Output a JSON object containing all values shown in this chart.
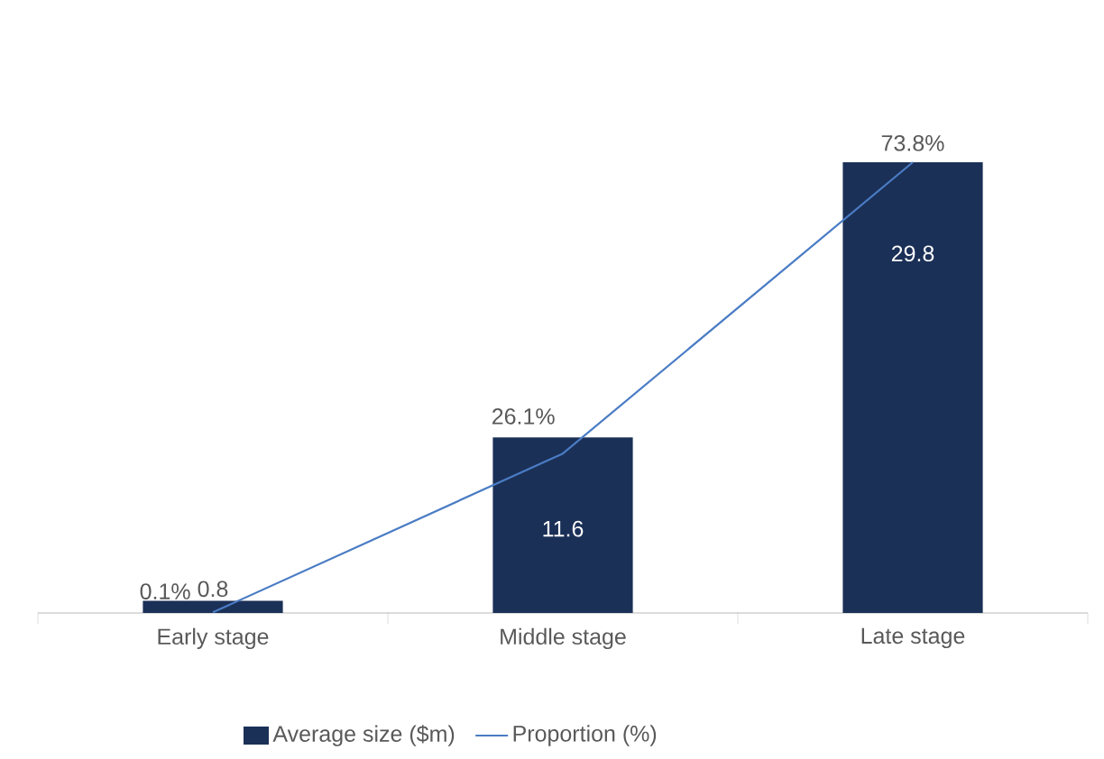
{
  "chart_data": {
    "type": "bar",
    "categories": [
      "Early stage",
      "Middle stage",
      "Late stage"
    ],
    "series": [
      {
        "name": "Average size ($m)",
        "color": "#1b3057",
        "values": [
          0.8,
          11.6,
          29.8
        ],
        "value_labels": [
          "0.8",
          "11.6",
          "29.8"
        ]
      },
      {
        "name": "Proportion (%)",
        "type": "line",
        "axis": "y2",
        "color": "#4a7cc4",
        "values": [
          0.1,
          26.1,
          73.8
        ],
        "value_labels": [
          "0.1%",
          "26.1%",
          "73.8%"
        ]
      }
    ],
    "legend": "bottom",
    "marker": "none",
    "tick_labels": "x"
  }
}
